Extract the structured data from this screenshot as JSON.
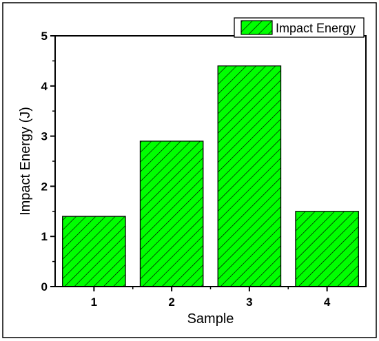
{
  "chart_data": {
    "type": "bar",
    "categories": [
      "1",
      "2",
      "3",
      "4"
    ],
    "series": [
      {
        "name": "Impact Energy",
        "values": [
          1.4,
          2.9,
          4.4,
          1.5
        ]
      }
    ],
    "title": "",
    "xlabel": "Sample",
    "ylabel": "Impact Energy (J)",
    "ylim": [
      0,
      5
    ],
    "yticks": [
      "0",
      "1",
      "2",
      "3",
      "4",
      "5"
    ],
    "grid": false,
    "legend_position": "top-right",
    "bar_fill": "#00ff00",
    "bar_hatch": "diagonal-lines",
    "edge_color": "#000000"
  }
}
